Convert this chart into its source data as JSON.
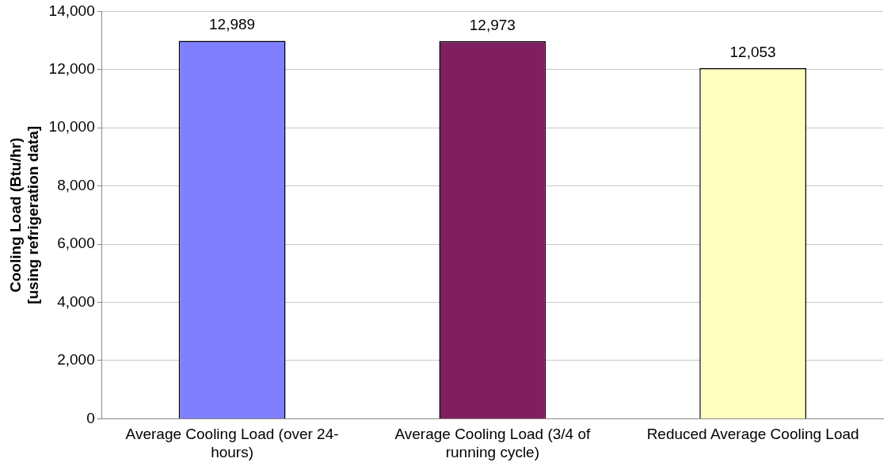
{
  "chart_data": {
    "type": "bar",
    "ylabel": "Cooling Load (Btu/hr)\n[using refrigeration data]",
    "categories": [
      "Average Cooling Load (over 24-hours)",
      "Average Cooling Load (3/4 of running cycle)",
      "Reduced Average Cooling Load"
    ],
    "values": [
      12989,
      12973,
      12053
    ],
    "colors": [
      "#8080ff",
      "#7f1f5f",
      "#ffffc0"
    ],
    "value_labels": [
      "12,989",
      "12,973",
      "12,053"
    ],
    "ylim": [
      0,
      14000
    ],
    "yticks": [
      0,
      {
        "value": 2000,
        "label": "2,000"
      },
      {
        "value": 4000,
        "label": "4,000"
      },
      {
        "value": 6000,
        "label": "6,000"
      },
      {
        "value": 8000,
        "label": "8,000"
      },
      {
        "value": 10000,
        "label": "10,000"
      },
      {
        "value": 12000,
        "label": "12,000"
      },
      {
        "value": 14000,
        "label": "14,000"
      }
    ],
    "grid": "y",
    "legend": false
  }
}
